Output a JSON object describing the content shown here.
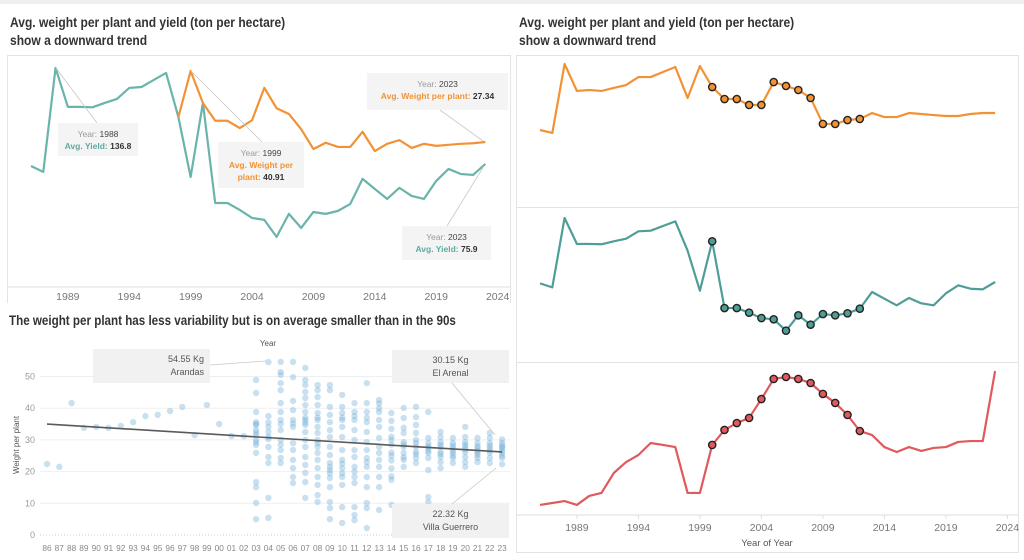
{
  "colors": {
    "weight_orange": "#f39234",
    "yield_teal_left": "#6ab4ab",
    "yield_teal_right": "#4f9d97",
    "third_red": "#e05a5d",
    "scatter_blue": "#7db5dc",
    "trendline": "#5a5a5a"
  },
  "left_panel": {
    "title_line1": "Avg. weight per plant and yield (ton per hectare)",
    "title_line2": "show a downward trend"
  },
  "right_panel": {
    "title_line1": "Avg. weight per plant and yield (ton per hectare)",
    "title_line2": "show a downward trend"
  },
  "bottom_left_panel": {
    "title": "The weight per plant has less variability but is on average smaller than in the 90s"
  },
  "chart_data": [
    {
      "type": "line",
      "title": "Avg. weight per plant and yield (ton per hectare) show a downward trend",
      "xlabel": "",
      "x": [
        1986,
        1987,
        1988,
        1989,
        1990,
        1991,
        1992,
        1993,
        1994,
        1995,
        1996,
        1997,
        1998,
        1999,
        2000,
        2001,
        2002,
        2003,
        2004,
        2005,
        2006,
        2007,
        2008,
        2009,
        2010,
        2011,
        2012,
        2013,
        2014,
        2015,
        2016,
        2017,
        2018,
        2019,
        2020,
        2021,
        2022,
        2023
      ],
      "xticks": [
        1989,
        1994,
        1999,
        2004,
        2009,
        2014,
        2019,
        2024
      ],
      "dual_axis": true,
      "grid": false,
      "series": [
        {
          "name": "Avg. Yield",
          "color_key": "yield_teal_left",
          "ylim": [
            -2.2,
            145.0
          ],
          "values": [
            74.6,
            70.8,
            136.8,
            112.1,
            112.1,
            111.8,
            114.6,
            117.1,
            124.1,
            124.7,
            129.2,
            133.6,
            105.7,
            67.6,
            114.6,
            51.1,
            51.1,
            46.7,
            41.6,
            40.4,
            29.6,
            44.2,
            35.3,
            45.4,
            44.2,
            46.1,
            50.5,
            66.4,
            60.0,
            53.7,
            60.7,
            55.6,
            53.7,
            65.1,
            72.7,
            69.5,
            68.9,
            75.9
          ]
        },
        {
          "name": "Avg. Weight per plant",
          "color_key": "weight_orange",
          "ylim": [
            -0.37,
            43.97
          ],
          "values": [
            null,
            null,
            null,
            null,
            null,
            null,
            null,
            null,
            null,
            null,
            null,
            null,
            32.1,
            40.91,
            34.8,
            31.4,
            31.4,
            30.0,
            31.5,
            37.7,
            33.8,
            32.7,
            29.8,
            26.0,
            27.2,
            26.4,
            26.4,
            29.3,
            25.6,
            27.0,
            27.7,
            26.2,
            27.0,
            26.6,
            26.8,
            27.0,
            27.1,
            27.34
          ]
        }
      ],
      "annotations": [
        {
          "year_label": "Year:",
          "year": "1988",
          "measure_label": "Avg. Yield:",
          "value": "136.8",
          "series": "Avg. Yield"
        },
        {
          "year_label": "Year:",
          "year": "1999",
          "measure_label": "Avg. Weight per plant:",
          "value": "40.91",
          "series": "Avg. Weight per plant"
        },
        {
          "year_label": "Year:",
          "year": "2023",
          "measure_label": "Avg. Weight per plant:",
          "value": "27.34",
          "series": "Avg. Weight per plant"
        },
        {
          "year_label": "Year:",
          "year": "2023",
          "measure_label": "Avg. Yield:",
          "value": "75.9",
          "series": "Avg. Yield"
        }
      ]
    },
    {
      "type": "scatter",
      "title": "The weight per plant has less variability but is on average smaller than in the 90s",
      "xlabel": "Year",
      "xlabel_position": "top",
      "ylabel": "Weight per plant",
      "ylim": [
        0,
        57.1
      ],
      "yticks": [
        0,
        10,
        20,
        30,
        40,
        50
      ],
      "grid": true,
      "categories": [
        "86",
        "87",
        "88",
        "89",
        "90",
        "91",
        "92",
        "93",
        "94",
        "95",
        "96",
        "97",
        "98",
        "99",
        "00",
        "01",
        "02",
        "03",
        "04",
        "05",
        "06",
        "07",
        "08",
        "09",
        "10",
        "11",
        "12",
        "13",
        "14",
        "15",
        "16",
        "17",
        "18",
        "19",
        "20",
        "21",
        "22",
        "23"
      ],
      "points": [
        {
          "x": "86",
          "values": [
            22.4
          ]
        },
        {
          "x": "87",
          "values": [
            21.5
          ]
        },
        {
          "x": "88",
          "values": [
            41.6
          ]
        },
        {
          "x": "89",
          "values": [
            33.8
          ]
        },
        {
          "x": "90",
          "values": [
            34.1
          ]
        },
        {
          "x": "91",
          "values": [
            33.8
          ]
        },
        {
          "x": "92",
          "values": [
            34.4
          ]
        },
        {
          "x": "93",
          "values": [
            35.6
          ]
        },
        {
          "x": "94",
          "values": [
            37.5
          ]
        },
        {
          "x": "95",
          "values": [
            37.9
          ]
        },
        {
          "x": "96",
          "values": [
            39.1
          ]
        },
        {
          "x": "97",
          "values": [
            40.4
          ]
        },
        {
          "x": "98",
          "values": [
            31.5
          ]
        },
        {
          "x": "99",
          "values": [
            41.0
          ]
        },
        {
          "x": "00",
          "values": [
            35.0
          ]
        },
        {
          "x": "01",
          "values": [
            31.2
          ]
        },
        {
          "x": "02",
          "values": [
            31.2
          ]
        },
        {
          "x": "03",
          "values": [
            48.9,
            44.8,
            38.8,
            35.6,
            35.0,
            34.7,
            33.1,
            32.3,
            31.5,
            30.0,
            29.2,
            28.4,
            25.9,
            16.7,
            15.1,
            10.1,
            5.0
          ]
        },
        {
          "x": "04",
          "values": [
            54.55,
            37.5,
            35.5,
            34.1,
            32.5,
            31.0,
            30.3,
            27.8,
            24.6,
            22.7,
            11.7,
            5.4
          ]
        },
        {
          "x": "05",
          "values": [
            54.6,
            51.4,
            50.5,
            47.9,
            45.7,
            41.6,
            38.8,
            36.3,
            35.0,
            33.1,
            30.0,
            28.5,
            26.8,
            24.3,
            22.7
          ]
        },
        {
          "x": "06",
          "values": [
            54.6,
            49.8,
            42.3,
            39.4,
            36.3,
            35.2,
            34.1,
            29.0,
            26.8,
            23.7,
            21.1,
            18.3,
            16.4
          ]
        },
        {
          "x": "07",
          "values": [
            52.7,
            48.9,
            47.3,
            45.1,
            43.2,
            41.0,
            38.8,
            37.0,
            36.3,
            35.5,
            34.7,
            32.5,
            30.0,
            27.8,
            24.6,
            22.1,
            19.6,
            16.7,
            11.7
          ]
        },
        {
          "x": "08",
          "values": [
            47.3,
            45.7,
            43.5,
            41.0,
            38.5,
            37.0,
            36.3,
            34.1,
            32.2,
            30.0,
            29.0,
            27.8,
            25.9,
            23.7,
            21.1,
            18.3,
            15.8,
            12.6,
            10.4
          ]
        },
        {
          "x": "09",
          "values": [
            47.3,
            45.7,
            40.4,
            37.9,
            35.6,
            33.1,
            30.9,
            27.8,
            25.2,
            22.7,
            21.5,
            20.5,
            19.5,
            18.0,
            15.1,
            10.4,
            8.5,
            5.0
          ]
        },
        {
          "x": "10",
          "values": [
            44.2,
            40.4,
            38.5,
            37.0,
            36.3,
            34.1,
            30.9,
            26.8,
            23.7,
            22.5,
            21.1,
            19.5,
            18.3,
            15.8,
            8.8,
            3.8
          ]
        },
        {
          "x": "11",
          "values": [
            41.6,
            38.8,
            37.5,
            36.3,
            33.1,
            30.0,
            26.8,
            24.6,
            21.5,
            20.0,
            18.3,
            16.4,
            8.8,
            6.3,
            4.7
          ]
        },
        {
          "x": "12",
          "values": [
            47.9,
            41.6,
            38.8,
            37.0,
            35.6,
            32.5,
            29.3,
            26.8,
            24.3,
            23.0,
            21.5,
            18.3,
            15.1,
            10.1,
            8.5,
            2.2
          ]
        },
        {
          "x": "13",
          "values": [
            42.6,
            41.5,
            40.0,
            38.8,
            36.3,
            34.1,
            30.6,
            27.8,
            25.9,
            23.7,
            21.5,
            18.3,
            15.1,
            7.9
          ]
        },
        {
          "x": "14",
          "values": [
            38.5,
            36.0,
            33.5,
            31.0,
            30.0,
            28.5,
            26.0,
            25.0,
            23.5,
            21.0,
            18.5,
            17.4,
            9.5
          ]
        },
        {
          "x": "15",
          "values": [
            40.1,
            36.9,
            33.8,
            32.2,
            29.3,
            28.5,
            27.8,
            25.9,
            24.5,
            23.7,
            21.5
          ]
        },
        {
          "x": "16",
          "values": [
            40.4,
            37.2,
            34.7,
            32.2,
            30.0,
            29.0,
            27.8,
            26.2,
            25.5,
            24.3,
            22.7
          ]
        },
        {
          "x": "17",
          "values": [
            38.8,
            30.6,
            29.0,
            28.0,
            27.4,
            26.5,
            25.9,
            24.3,
            20.5,
            12.0,
            10.4
          ]
        },
        {
          "x": "18",
          "values": [
            32.5,
            30.9,
            29.3,
            28.5,
            27.8,
            26.2,
            25.5,
            24.6,
            23.0,
            21.1
          ]
        },
        {
          "x": "19",
          "values": [
            30.6,
            29.0,
            28.2,
            27.4,
            26.6,
            25.9,
            25.0,
            24.3,
            22.7
          ]
        },
        {
          "x": "20",
          "values": [
            34.1,
            30.9,
            29.3,
            28.5,
            27.8,
            27.0,
            26.2,
            24.6,
            23.0,
            21.5
          ]
        },
        {
          "x": "21",
          "values": [
            30.6,
            29.0,
            28.0,
            27.4,
            26.5,
            25.9,
            25.2,
            24.3,
            23.0
          ]
        },
        {
          "x": "22",
          "values": [
            32.2,
            30.6,
            29.0,
            28.2,
            27.4,
            26.7,
            25.9,
            24.3,
            22.7
          ]
        },
        {
          "x": "23",
          "values": [
            30.15,
            29.0,
            28.2,
            27.8,
            27.4,
            26.6,
            25.9,
            25.0,
            24.3,
            22.32
          ]
        }
      ],
      "trendline": {
        "start": {
          "x": "86",
          "y": 35.0
        },
        "end": {
          "x": "23",
          "y": 26.2
        }
      },
      "annotations": [
        {
          "value": "54.55 Kg",
          "label": "Arandas",
          "x": "04",
          "y": 54.55
        },
        {
          "value": "30.15 Kg",
          "label": "El Arenal",
          "x": "23",
          "y": 30.15
        },
        {
          "value": "22.32 Kg",
          "label": "Villa Guerrero",
          "x": "23",
          "y": 22.32
        }
      ]
    },
    {
      "type": "line",
      "title": "Avg. weight per plant and yield (ton per hectare) show a downward trend",
      "xlabel": "Year of Year",
      "x": [
        1986,
        1987,
        1988,
        1989,
        1990,
        1991,
        1992,
        1993,
        1994,
        1995,
        1996,
        1997,
        1998,
        1999,
        2000,
        2001,
        2002,
        2003,
        2004,
        2005,
        2006,
        2007,
        2008,
        2009,
        2010,
        2011,
        2012,
        2013,
        2014,
        2015,
        2016,
        2017,
        2018,
        2019,
        2020,
        2021,
        2022,
        2023
      ],
      "xticks": [
        1989,
        1994,
        1999,
        2004,
        2009,
        2014,
        2019,
        2024
      ],
      "y_axis_labels_shown": false,
      "highlight_years": [
        2000,
        2012
      ],
      "panels": [
        {
          "id": "top",
          "color_key": "weight_orange",
          "units": "relative (no axis shown)",
          "ylim": [
            3.9,
            145.3
          ],
          "values": [
            74.6,
            71.8,
            136.8,
            111.4,
            112.3,
            111.4,
            114.2,
            117.0,
            124.5,
            124.5,
            129.3,
            134.0,
            104.8,
            134.9,
            115.1,
            103.8,
            103.8,
            98.2,
            98.2,
            119.8,
            116.1,
            112.3,
            104.8,
            80.3,
            80.3,
            84.0,
            85.0,
            90.6,
            86.8,
            86.8,
            90.6,
            89.7,
            88.7,
            87.8,
            87.8,
            89.7,
            90.6,
            90.6
          ]
        },
        {
          "id": "middle",
          "color_key": "yield_teal_right",
          "units": "relative (no axis shown)",
          "ylim": [
            1.7,
            146.3
          ],
          "values": [
            74.6,
            70.8,
            136.8,
            112.1,
            112.1,
            111.8,
            114.6,
            117.1,
            124.1,
            124.7,
            129.2,
            133.6,
            105.7,
            67.6,
            114.6,
            51.1,
            51.1,
            46.7,
            41.6,
            40.4,
            29.6,
            44.2,
            35.3,
            45.4,
            44.2,
            46.1,
            50.5,
            66.4,
            60.0,
            53.7,
            60.7,
            55.6,
            53.7,
            65.1,
            72.7,
            69.5,
            68.9,
            75.9
          ]
        },
        {
          "id": "bottom",
          "color_key": "third_red",
          "units": "relative index (no axis shown)",
          "ylim": [
            0,
            100
          ],
          "values": [
            6.7,
            8.0,
            9.3,
            6.7,
            12.7,
            14.7,
            28.0,
            35.3,
            40.0,
            48.0,
            46.7,
            45.3,
            14.7,
            14.7,
            46.7,
            56.7,
            61.3,
            64.7,
            77.3,
            90.7,
            92.0,
            90.7,
            88.0,
            80.7,
            74.7,
            66.7,
            56.0,
            53.3,
            45.3,
            42.0,
            45.3,
            42.7,
            44.7,
            45.3,
            48.7,
            49.3,
            49.3,
            96.0
          ]
        }
      ]
    }
  ]
}
